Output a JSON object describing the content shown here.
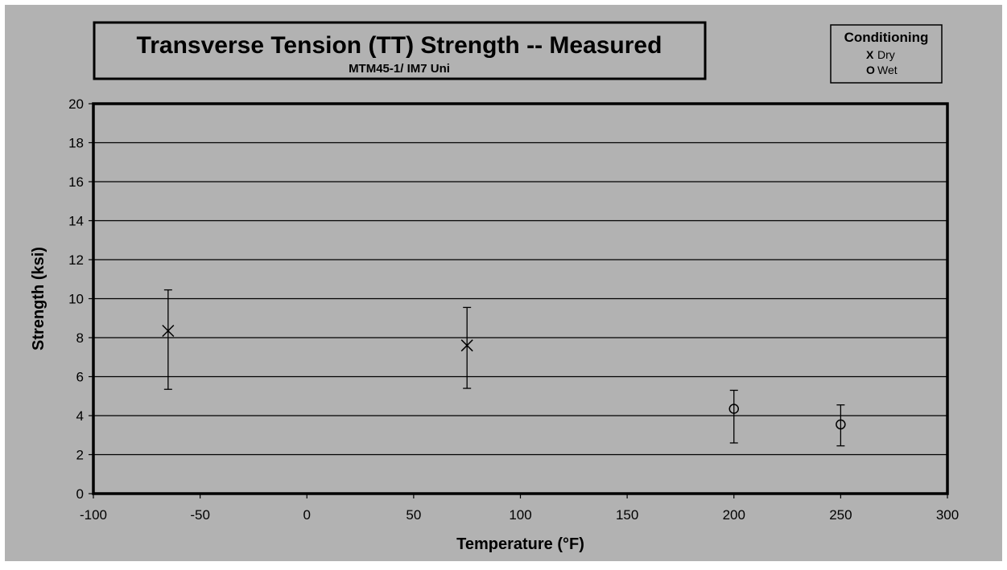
{
  "chart_data": {
    "type": "scatter",
    "title": "Transverse Tension (TT) Strength -- Measured",
    "subtitle": "MTM45-1/ IM7 Uni",
    "xlabel": "Temperature (°F)",
    "ylabel": "Strength (ksi)",
    "xlim": [
      -100,
      300
    ],
    "ylim": [
      0,
      20
    ],
    "x_ticks": [
      -100,
      -50,
      0,
      50,
      100,
      150,
      200,
      250,
      300
    ],
    "y_ticks": [
      0,
      2,
      4,
      6,
      8,
      10,
      12,
      14,
      16,
      18,
      20
    ],
    "grid": "horizontal",
    "legend": {
      "title": "Conditioning",
      "placement": "top-right",
      "entries": [
        {
          "marker_label": "X",
          "label": "Dry"
        },
        {
          "marker_label": "O",
          "label": "Wet"
        }
      ]
    },
    "series": [
      {
        "name": "Dry",
        "marker": "x",
        "points": [
          {
            "x": -65,
            "y": 8.35,
            "low": 5.35,
            "high": 10.45
          },
          {
            "x": 75,
            "y": 7.6,
            "low": 5.4,
            "high": 9.55
          }
        ]
      },
      {
        "name": "Wet",
        "marker": "o",
        "points": [
          {
            "x": 200,
            "y": 4.35,
            "low": 2.6,
            "high": 5.3
          },
          {
            "x": 250,
            "y": 3.55,
            "low": 2.45,
            "high": 4.55
          }
        ]
      }
    ],
    "colors": {
      "background": "#b2b2b2",
      "plot_area": "#b2b2b2",
      "lines": "#000000",
      "outer": "#ffffff"
    }
  }
}
